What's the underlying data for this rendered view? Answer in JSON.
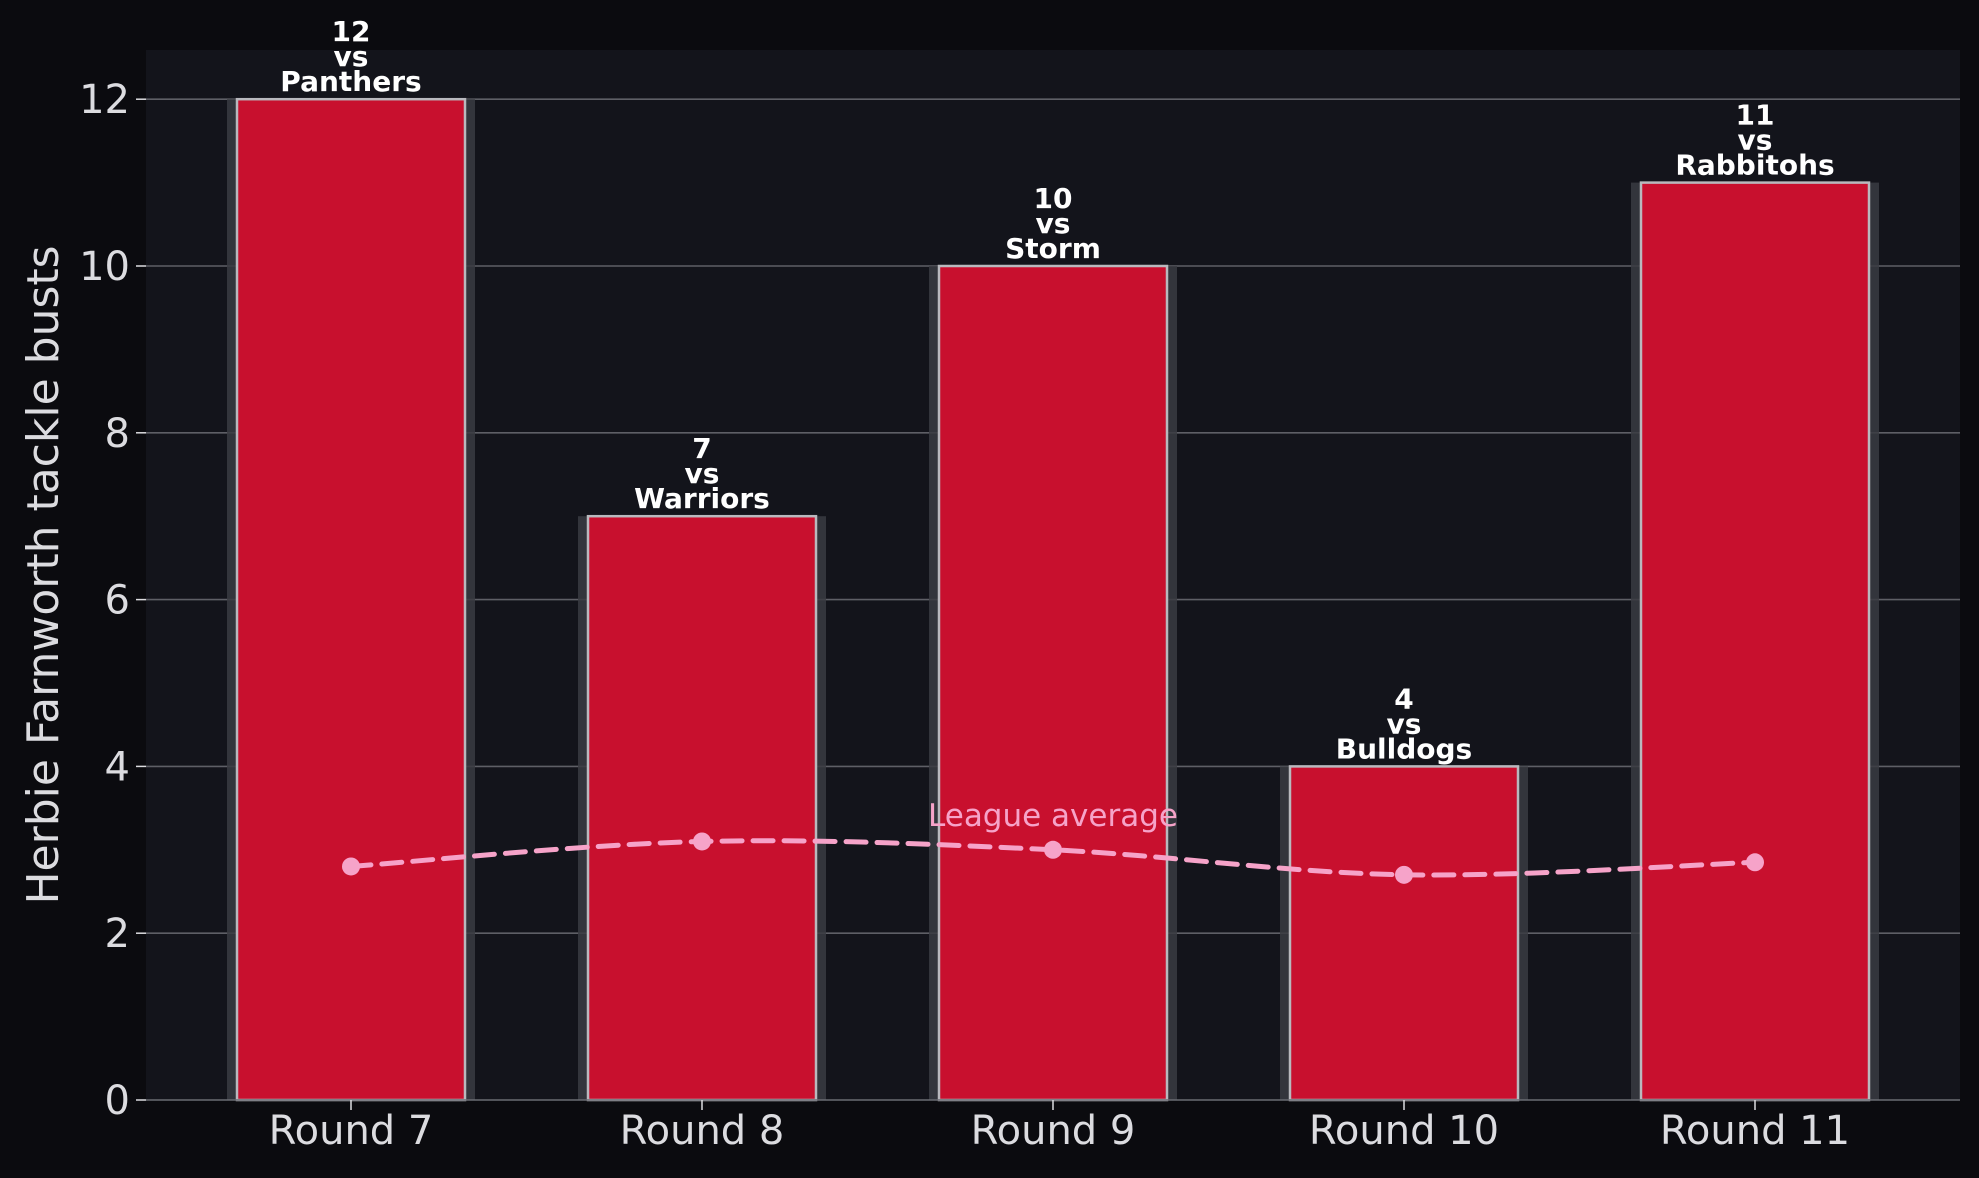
{
  "chart_data": {
    "type": "bar",
    "categories": [
      "Round 7",
      "Round 8",
      "Round 9",
      "Round 10",
      "Round 11"
    ],
    "values": [
      12,
      7,
      10,
      4,
      11
    ],
    "opponents": [
      "Panthers",
      "Warriors",
      "Storm",
      "Bulldogs",
      "Rabbitohs"
    ],
    "bar_label_connector": "vs",
    "ylabel": "Herbie Farnworth tackle busts",
    "xlabel": "",
    "title": "",
    "ylim": [
      0,
      12.6
    ],
    "yticks": [
      0,
      2,
      4,
      6,
      8,
      10,
      12
    ],
    "grid": true,
    "line_series": {
      "name": "League average",
      "values": [
        2.8,
        3.1,
        3.0,
        2.7,
        2.85
      ],
      "style": "dashed",
      "label_at_category_index": 2
    },
    "colors": {
      "figure_background": "#0b0b0f",
      "plot_background": "#13141b",
      "bar_fill": "#c8102e",
      "bar_edge": "#b9b9be",
      "bar_shadow": "#3a3b42",
      "grid": "#5e5f66",
      "axis_text": "#dcdce0",
      "bar_label": "#ffffff",
      "line": "#f6a3c9"
    }
  }
}
